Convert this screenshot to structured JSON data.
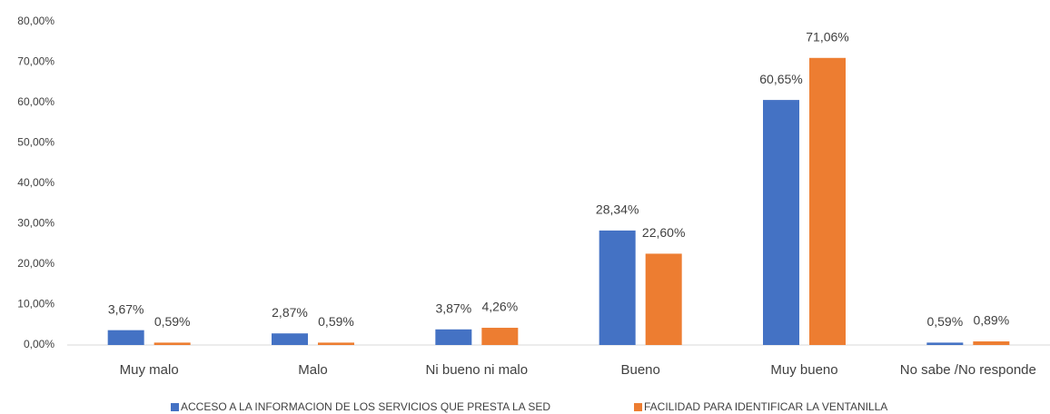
{
  "chart_data": {
    "type": "bar",
    "categories": [
      "Muy malo",
      "Malo",
      "Ni bueno ni malo",
      "Bueno",
      "Muy bueno",
      "No sabe /No responde"
    ],
    "series": [
      {
        "name": "ACCESO A LA INFORMACION DE LOS SERVICIOS QUE PRESTA LA SED",
        "color": "#4472c4",
        "values": [
          3.67,
          2.87,
          3.87,
          28.34,
          60.65,
          0.59
        ],
        "value_labels": [
          "3,67%",
          "2,87%",
          "3,87%",
          "28,34%",
          "60,65%",
          "0,59%"
        ]
      },
      {
        "name": "FACILIDAD PARA IDENTIFICAR LA VENTANILLA",
        "color": "#ed7d31",
        "values": [
          0.59,
          0.59,
          4.26,
          22.6,
          71.06,
          0.89
        ],
        "value_labels": [
          "0,59%",
          "0,59%",
          "4,26%",
          "22,60%",
          "71,06%",
          "0,89%"
        ]
      }
    ],
    "ylim": [
      0,
      80
    ],
    "yticks": [
      {
        "value": 0,
        "label": "0,00%"
      },
      {
        "value": 10,
        "label": "10,00%"
      },
      {
        "value": 20,
        "label": "20,00%"
      },
      {
        "value": 30,
        "label": "30,00%"
      },
      {
        "value": 40,
        "label": "40,00%"
      },
      {
        "value": 50,
        "label": "50,00%"
      },
      {
        "value": 60,
        "label": "60,00%"
      },
      {
        "value": 70,
        "label": "70,00%"
      },
      {
        "value": 80,
        "label": "80,00%"
      }
    ],
    "grid": false,
    "legend": "bottom"
  }
}
